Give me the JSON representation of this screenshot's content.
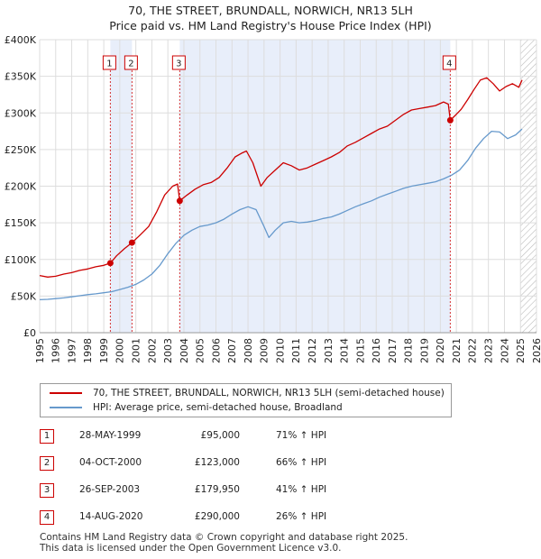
{
  "header": {
    "title": "70, THE STREET, BRUNDALL, NORWICH, NR13 5LH",
    "subtitle": "Price paid vs. HM Land Registry's House Price Index (HPI)"
  },
  "chart_data": {
    "type": "line",
    "x_range": [
      1995,
      2026
    ],
    "ylim": [
      0,
      400000
    ],
    "y_ticks": [
      0,
      50000,
      100000,
      150000,
      200000,
      250000,
      300000,
      350000,
      400000
    ],
    "y_tick_labels": [
      "£0",
      "£50K",
      "£100K",
      "£150K",
      "£200K",
      "£250K",
      "£300K",
      "£350K",
      "£400K"
    ],
    "x_ticks": [
      1995,
      1996,
      1997,
      1998,
      1999,
      2000,
      2001,
      2002,
      2003,
      2004,
      2005,
      2006,
      2007,
      2008,
      2009,
      2010,
      2011,
      2012,
      2013,
      2014,
      2015,
      2016,
      2017,
      2018,
      2019,
      2020,
      2021,
      2022,
      2023,
      2024,
      2025,
      2026
    ],
    "x_tick_labels": [
      "1995",
      "1996",
      "1997",
      "1998",
      "1999",
      "2000",
      "2001",
      "2002",
      "2003",
      "2004",
      "2005",
      "2006",
      "2007",
      "2008",
      "2009",
      "2010",
      "2011",
      "2012",
      "2013",
      "2014",
      "2015",
      "2016",
      "2017",
      "2018",
      "2019",
      "2020",
      "2021",
      "2022",
      "2023",
      "2024",
      "2025",
      "2026"
    ],
    "shaded_periods": [
      [
        1999.41,
        2000.76
      ],
      [
        2003.74,
        2020.62
      ]
    ],
    "future_from": 2025.0,
    "series": [
      {
        "name": "70, THE STREET, BRUNDALL, NORWICH, NR13 5LH (semi-detached house)",
        "color": "#cc0000",
        "x": [
          1995.0,
          1995.5,
          1996.0,
          1996.5,
          1997.0,
          1997.5,
          1998.0,
          1998.5,
          1999.0,
          1999.41,
          1999.8,
          2000.3,
          2000.76,
          2001.2,
          2001.8,
          2002.3,
          2002.8,
          2003.3,
          2003.6,
          2003.74,
          2004.2,
          2004.7,
          2005.2,
          2005.7,
          2006.2,
          2006.7,
          2007.2,
          2007.6,
          2007.9,
          2008.3,
          2008.8,
          2009.2,
          2009.7,
          2010.2,
          2010.7,
          2011.2,
          2011.7,
          2012.2,
          2012.7,
          2013.2,
          2013.7,
          2014.2,
          2014.7,
          2015.2,
          2015.7,
          2016.2,
          2016.7,
          2017.2,
          2017.7,
          2018.2,
          2018.7,
          2019.2,
          2019.7,
          2020.2,
          2020.5,
          2020.62,
          2020.9,
          2021.3,
          2021.7,
          2022.1,
          2022.5,
          2022.9,
          2023.3,
          2023.7,
          2024.1,
          2024.5,
          2024.9,
          2025.1
        ],
        "y": [
          78000,
          76000,
          77000,
          80000,
          82000,
          85000,
          87000,
          90000,
          92000,
          95000,
          105000,
          115000,
          123000,
          132000,
          145000,
          165000,
          188000,
          200000,
          203000,
          179950,
          188000,
          196000,
          202000,
          205000,
          212000,
          225000,
          240000,
          245000,
          248000,
          232000,
          200000,
          212000,
          222000,
          232000,
          228000,
          222000,
          225000,
          230000,
          235000,
          240000,
          246000,
          255000,
          260000,
          266000,
          272000,
          278000,
          282000,
          290000,
          298000,
          304000,
          306000,
          308000,
          310000,
          315000,
          312000,
          290000,
          296000,
          305000,
          318000,
          332000,
          345000,
          348000,
          340000,
          330000,
          336000,
          340000,
          335000,
          345000
        ]
      },
      {
        "name": "HPI: Average price, semi-detached house, Broadland",
        "color": "#6699cc",
        "x": [
          1995.0,
          1995.5,
          1996.0,
          1996.5,
          1997.0,
          1997.5,
          1998.0,
          1998.5,
          1999.0,
          1999.5,
          2000.0,
          2000.5,
          2001.0,
          2001.5,
          2002.0,
          2002.5,
          2003.0,
          2003.5,
          2004.0,
          2004.5,
          2005.0,
          2005.5,
          2006.0,
          2006.5,
          2007.0,
          2007.5,
          2008.0,
          2008.5,
          2009.0,
          2009.3,
          2009.7,
          2010.2,
          2010.7,
          2011.2,
          2011.7,
          2012.2,
          2012.7,
          2013.2,
          2013.7,
          2014.2,
          2014.7,
          2015.2,
          2015.7,
          2016.2,
          2016.7,
          2017.2,
          2017.7,
          2018.2,
          2018.7,
          2019.2,
          2019.7,
          2020.2,
          2020.7,
          2021.2,
          2021.7,
          2022.2,
          2022.7,
          2023.2,
          2023.7,
          2024.2,
          2024.7,
          2025.1
        ],
        "y": [
          45000,
          45500,
          46500,
          47500,
          49000,
          50500,
          52000,
          53000,
          54500,
          56000,
          59000,
          62000,
          66000,
          72000,
          80000,
          92000,
          108000,
          122000,
          133000,
          140000,
          145000,
          147000,
          150000,
          155000,
          162000,
          168000,
          172000,
          168000,
          145000,
          130000,
          140000,
          150000,
          152000,
          150000,
          151000,
          153000,
          156000,
          158000,
          162000,
          167000,
          172000,
          176000,
          180000,
          185000,
          189000,
          193000,
          197000,
          200000,
          202000,
          204000,
          206000,
          210000,
          215000,
          222000,
          235000,
          252000,
          265000,
          275000,
          274000,
          265000,
          270000,
          278000
        ]
      }
    ],
    "sale_points": [
      {
        "label": "1",
        "x": 1999.41,
        "y": 95000
      },
      {
        "label": "2",
        "x": 2000.76,
        "y": 123000
      },
      {
        "label": "3",
        "x": 2003.74,
        "y": 179950
      },
      {
        "label": "4",
        "x": 2020.62,
        "y": 290000
      }
    ]
  },
  "legend": {
    "items": [
      {
        "label": "70, THE STREET, BRUNDALL, NORWICH, NR13 5LH (semi-detached house)",
        "color": "#cc0000"
      },
      {
        "label": "HPI: Average price, semi-detached house, Broadland",
        "color": "#6699cc"
      }
    ]
  },
  "transactions": [
    {
      "num": "1",
      "date": "28-MAY-1999",
      "price": "£95,000",
      "hpi": "71% ↑ HPI"
    },
    {
      "num": "2",
      "date": "04-OCT-2000",
      "price": "£123,000",
      "hpi": "66% ↑ HPI"
    },
    {
      "num": "3",
      "date": "26-SEP-2003",
      "price": "£179,950",
      "hpi": "41% ↑ HPI"
    },
    {
      "num": "4",
      "date": "14-AUG-2020",
      "price": "£290,000",
      "hpi": "26% ↑ HPI"
    }
  ],
  "footer": {
    "line1": "Contains HM Land Registry data © Crown copyright and database right 2025.",
    "line2": "This data is licensed under the Open Government Licence v3.0."
  }
}
